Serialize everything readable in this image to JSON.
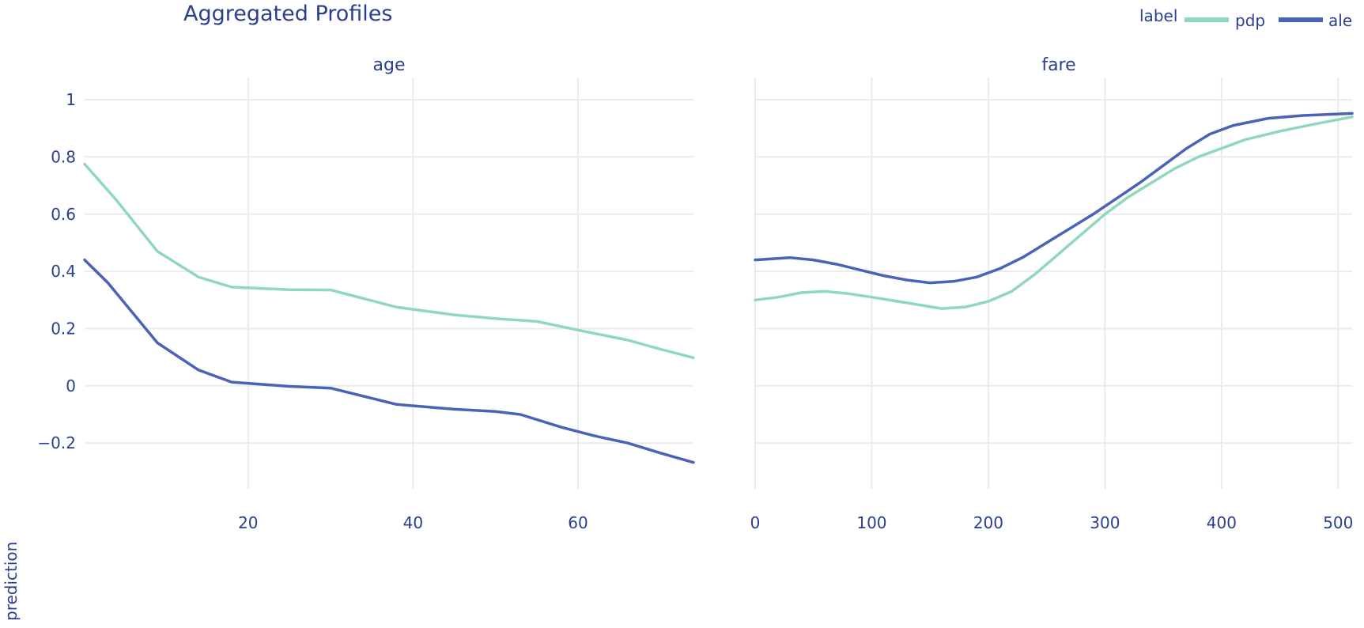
{
  "chart_data": {
    "type": "line",
    "title": "Aggregated Profiles",
    "ylabel": "prediction",
    "legend": {
      "title": "label",
      "placement": "top-right",
      "entries": [
        "pdp",
        "ale"
      ]
    },
    "colors": {
      "pdp": "#8fd8bd",
      "ale": "#4a63b5",
      "text": "#2a3f8f",
      "grid": "#ebebeb"
    },
    "grid": true,
    "yticks": [
      "1",
      "0.8",
      "0.6",
      "0.4",
      "0.2",
      "0",
      "−0.2"
    ],
    "ytick_values": [
      1,
      0.8,
      0.6,
      0.4,
      0.2,
      0,
      -0.2
    ],
    "ylim": [
      -0.36,
      1.05
    ],
    "panels": [
      {
        "title": "age",
        "xlabel": "",
        "xlim": [
          0.17,
          74
        ],
        "xticks": [
          "20",
          "40",
          "60"
        ],
        "xtick_values": [
          20,
          40,
          60
        ],
        "series": [
          {
            "name": "pdp",
            "x": [
              0.17,
              4,
              9,
              14,
              18,
              25,
              30,
              38,
              45,
              50,
              55,
              60,
              66,
              70,
              74
            ],
            "y": [
              0.775,
              0.65,
              0.47,
              0.38,
              0.345,
              0.336,
              0.335,
              0.275,
              0.248,
              0.235,
              0.225,
              0.195,
              0.16,
              0.128,
              0.098
            ]
          },
          {
            "name": "ale",
            "x": [
              0.17,
              3,
              9,
              14,
              18,
              25,
              30,
              38,
              45,
              50,
              53,
              58,
              62,
              66,
              70,
              74
            ],
            "y": [
              0.44,
              0.36,
              0.15,
              0.055,
              0.013,
              -0.002,
              -0.008,
              -0.065,
              -0.082,
              -0.09,
              -0.1,
              -0.145,
              -0.175,
              -0.2,
              -0.235,
              -0.268
            ]
          }
        ]
      },
      {
        "title": "fare",
        "xlabel": "",
        "xlim": [
          0,
          512
        ],
        "xticks": [
          "0",
          "100",
          "200",
          "300",
          "400",
          "500"
        ],
        "xtick_values": [
          0,
          100,
          200,
          300,
          400,
          500
        ],
        "series": [
          {
            "name": "pdp",
            "x": [
              0,
              20,
              40,
              60,
              80,
              100,
              130,
              160,
              180,
              200,
              220,
              240,
              260,
              280,
              300,
              320,
              340,
              360,
              380,
              400,
              420,
              450,
              480,
              512
            ],
            "y": [
              0.3,
              0.31,
              0.326,
              0.33,
              0.322,
              0.31,
              0.29,
              0.27,
              0.275,
              0.295,
              0.33,
              0.39,
              0.46,
              0.53,
              0.6,
              0.66,
              0.71,
              0.76,
              0.8,
              0.83,
              0.86,
              0.89,
              0.915,
              0.94
            ]
          },
          {
            "name": "ale",
            "x": [
              0,
              30,
              50,
              70,
              90,
              110,
              130,
              150,
              170,
              190,
              210,
              230,
              250,
              270,
              290,
              310,
              330,
              350,
              370,
              390,
              410,
              440,
              470,
              512
            ],
            "y": [
              0.44,
              0.448,
              0.44,
              0.425,
              0.405,
              0.385,
              0.37,
              0.36,
              0.365,
              0.38,
              0.41,
              0.45,
              0.5,
              0.55,
              0.6,
              0.655,
              0.71,
              0.77,
              0.83,
              0.88,
              0.91,
              0.935,
              0.945,
              0.952
            ]
          }
        ]
      }
    ]
  }
}
